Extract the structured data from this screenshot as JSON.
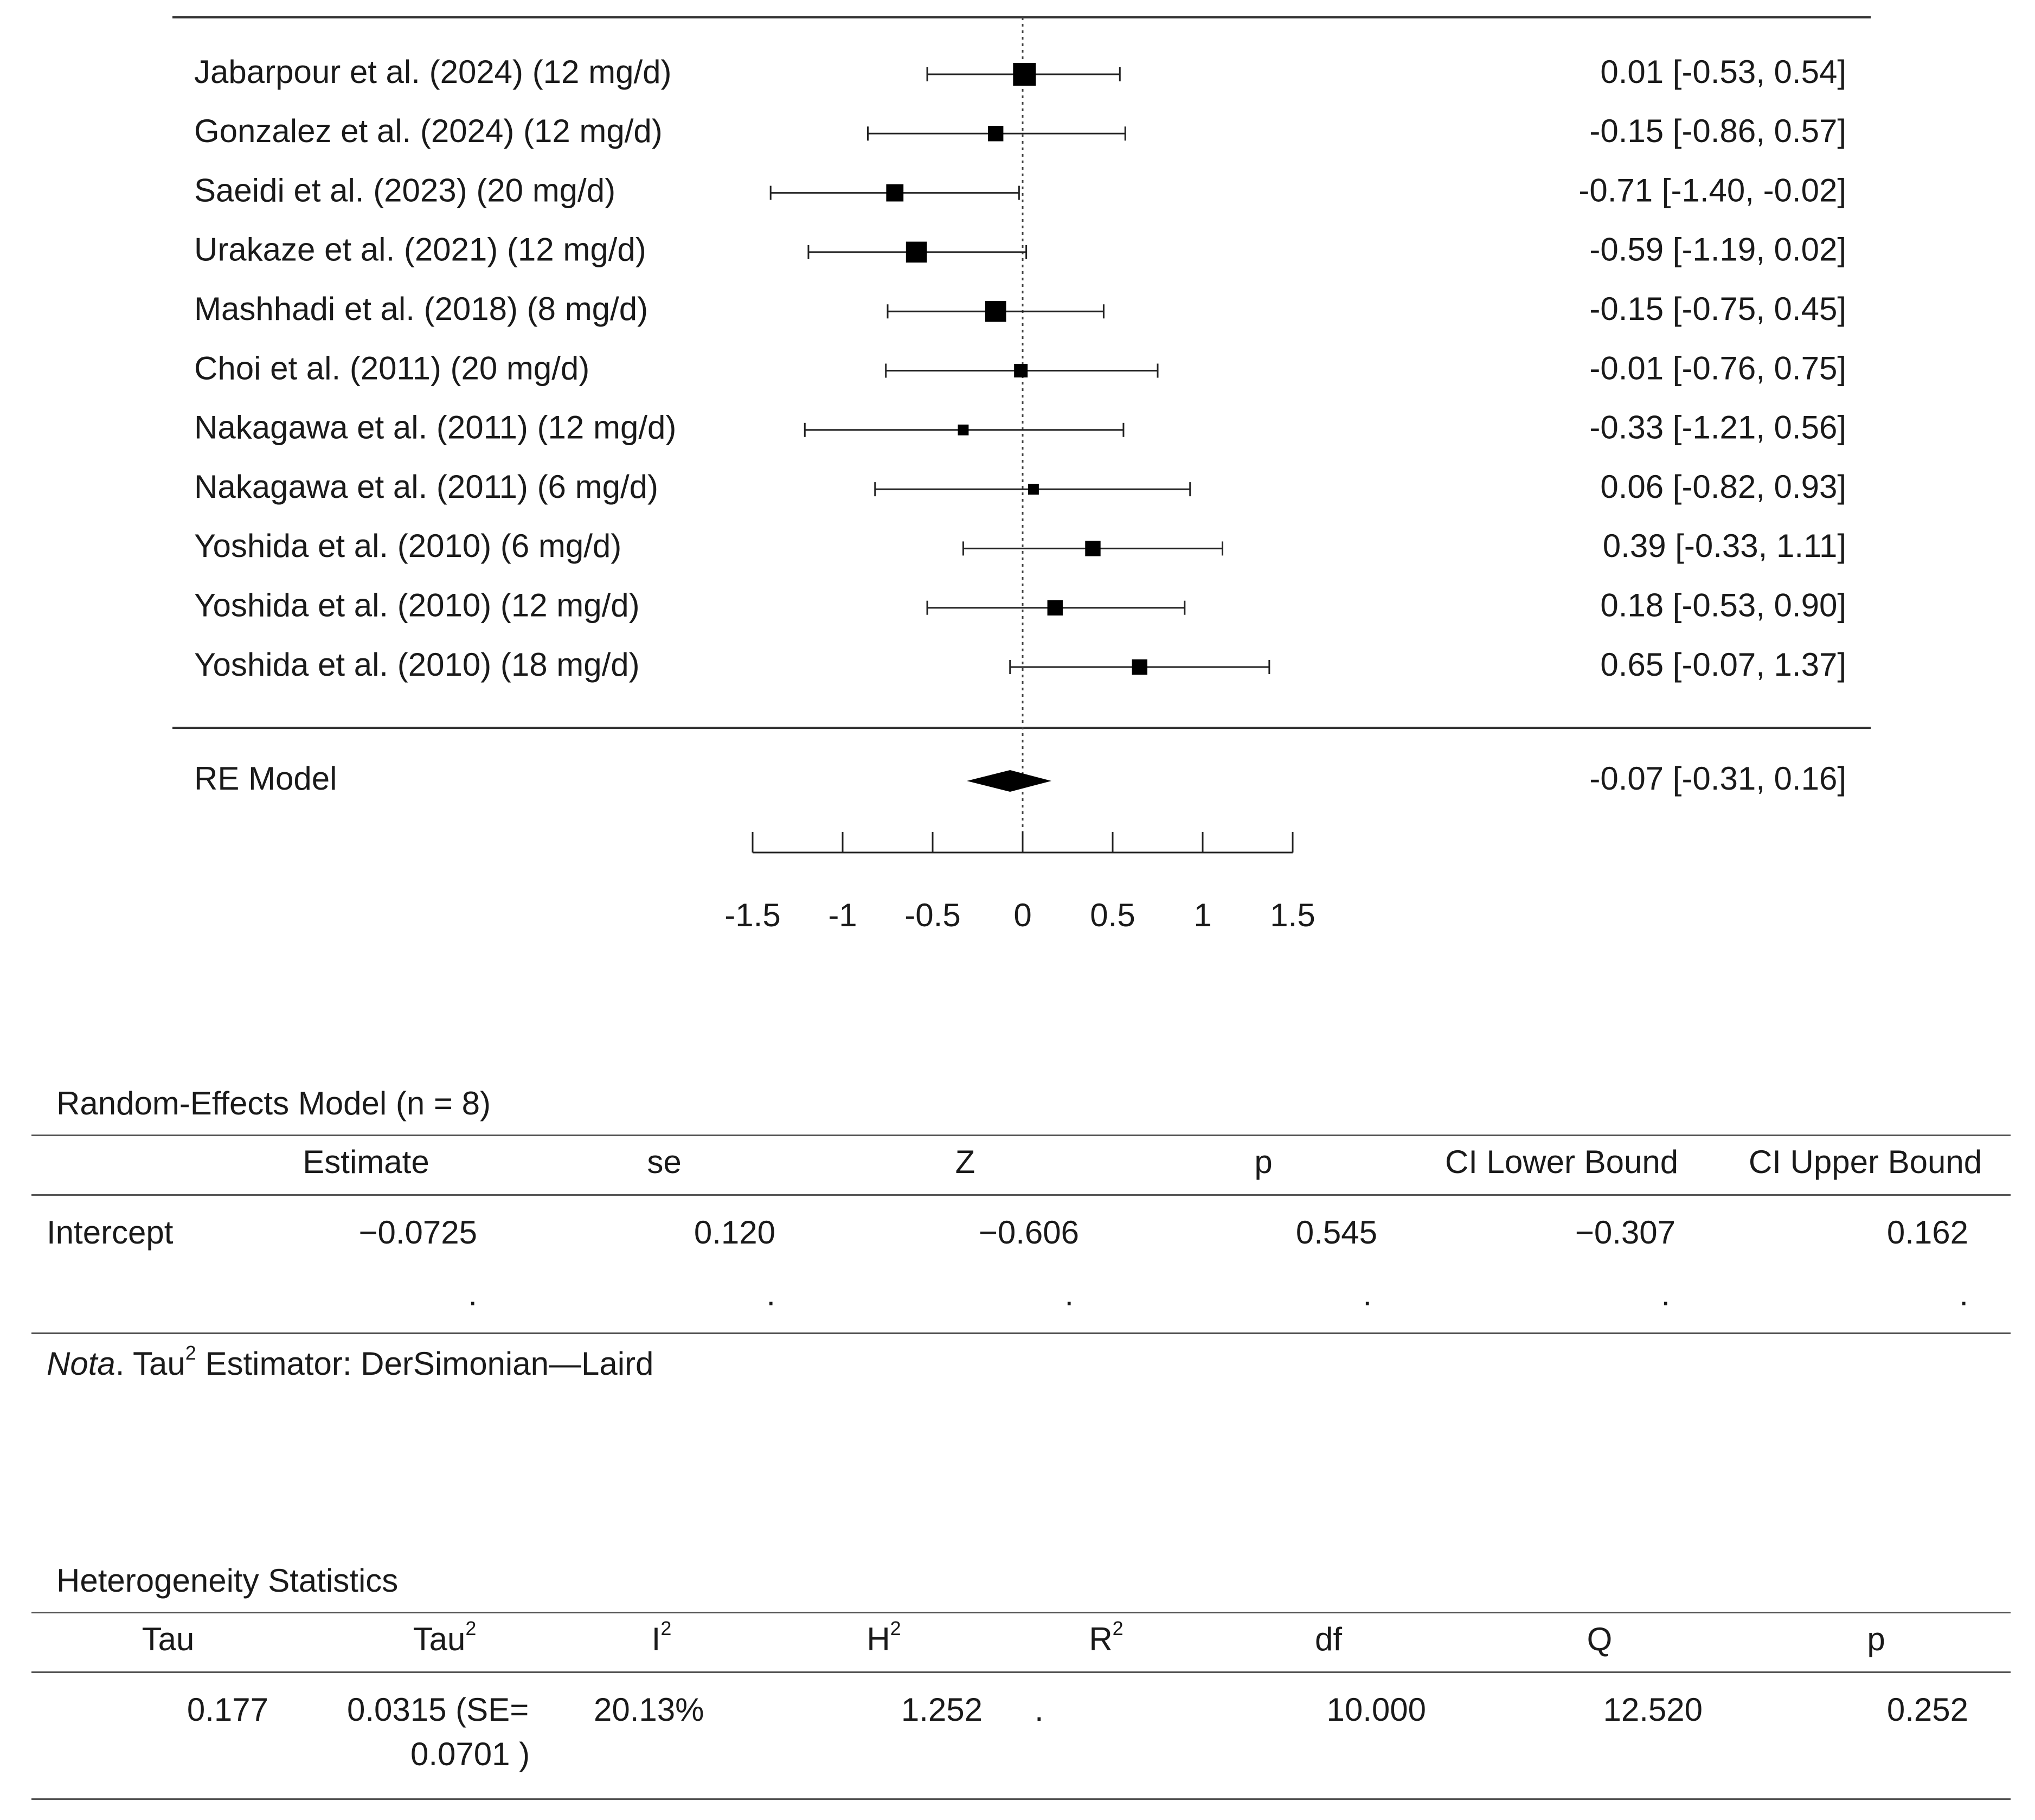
{
  "chart_data": {
    "type": "forest",
    "studies": [
      {
        "label": "Jabarpour et al. (2024) (12 mg/d)",
        "estimate": 0.01,
        "lower": -0.53,
        "upper": 0.54,
        "ci_text": "0.01 [-0.53,  0.54]",
        "weight": 1.0
      },
      {
        "label": "Gonzalez et al. (2024) (12 mg/d)",
        "estimate": -0.15,
        "lower": -0.86,
        "upper": 0.57,
        "ci_text": "-0.15 [-0.86,  0.57]",
        "weight": 0.6
      },
      {
        "label": "Saeidi et al. (2023) (20 mg/d)",
        "estimate": -0.71,
        "lower": -1.4,
        "upper": -0.02,
        "ci_text": "-0.71 [-1.40, -0.02]",
        "weight": 0.7
      },
      {
        "label": "Urakaze et al. (2021) (12 mg/d)",
        "estimate": -0.59,
        "lower": -1.19,
        "upper": 0.02,
        "ci_text": "-0.59 [-1.19,  0.02]",
        "weight": 0.9
      },
      {
        "label": "Mashhadi et al. (2018) (8 mg/d)",
        "estimate": -0.15,
        "lower": -0.75,
        "upper": 0.45,
        "ci_text": "-0.15 [-0.75,  0.45]",
        "weight": 0.9
      },
      {
        "label": "Choi et al. (2011) (20 mg/d)",
        "estimate": -0.01,
        "lower": -0.76,
        "upper": 0.75,
        "ci_text": "-0.01 [-0.76,  0.75]",
        "weight": 0.5
      },
      {
        "label": "Nakagawa et al. (2011) (12 mg/d)",
        "estimate": -0.33,
        "lower": -1.21,
        "upper": 0.56,
        "ci_text": "-0.33 [-1.21,  0.56]",
        "weight": 0.35
      },
      {
        "label": "Nakagawa et al. (2011) (6 mg/d)",
        "estimate": 0.06,
        "lower": -0.82,
        "upper": 0.93,
        "ci_text": "0.06 [-0.82,  0.93]",
        "weight": 0.35
      },
      {
        "label": "Yoshida et al. (2010) (6 mg/d)",
        "estimate": 0.39,
        "lower": -0.33,
        "upper": 1.11,
        "ci_text": "0.39 [-0.33,  1.11]",
        "weight": 0.6
      },
      {
        "label": "Yoshida et al. (2010) (12 mg/d)",
        "estimate": 0.18,
        "lower": -0.53,
        "upper": 0.9,
        "ci_text": "0.18 [-0.53,  0.90]",
        "weight": 0.6
      },
      {
        "label": "Yoshida et al. (2010) (18 mg/d)",
        "estimate": 0.65,
        "lower": -0.07,
        "upper": 1.37,
        "ci_text": "0.65 [-0.07,  1.37]",
        "weight": 0.6
      }
    ],
    "summary": {
      "label": "RE Model",
      "estimate": -0.07,
      "lower": -0.31,
      "upper": 0.16,
      "ci_text": "-0.07 [-0.31,  0.16]"
    },
    "x_ticks": [
      -1.5,
      -1,
      -0.5,
      0,
      0.5,
      1,
      1.5
    ],
    "x_tick_labels": [
      "-1.5",
      "-1",
      "-0.5",
      "0",
      "0.5",
      "1",
      "1.5"
    ],
    "xlim": [
      -1.5,
      1.5
    ],
    "reference_line": 0
  },
  "re_table": {
    "title": "Random-Effects Model (n = 8)",
    "headers": [
      "Estimate",
      "se",
      "Z",
      "p",
      "CI Lower Bound",
      "CI Upper Bound"
    ],
    "row_label": "Intercept",
    "values": [
      "−0.0725",
      "0.120",
      "−0.606",
      "0.545",
      "−0.307",
      "0.162"
    ],
    "dots": [
      ".",
      ".",
      ".",
      ".",
      ".",
      "."
    ],
    "note_italic": "Nota",
    "note_rest_a": ". Tau",
    "note_sup": "2",
    "note_rest_b": " Estimator: DerSimonian—Laird"
  },
  "het_table": {
    "title": "Heterogeneity Statistics",
    "headers": {
      "tau": "Tau",
      "tau2_base": "Tau",
      "i2_base": "I",
      "h2_base": "H",
      "r2_base": "R",
      "sup": "2",
      "df": "df",
      "q": "Q",
      "p": "p"
    },
    "values": {
      "tau": "0.177",
      "tau2_line1": "0.0315 (SE=",
      "tau2_line2": "0.0701 )",
      "i2": "20.13%",
      "h2": "1.252",
      "r2": ".",
      "df": "10.000",
      "q": "12.520",
      "p": "0.252"
    }
  }
}
